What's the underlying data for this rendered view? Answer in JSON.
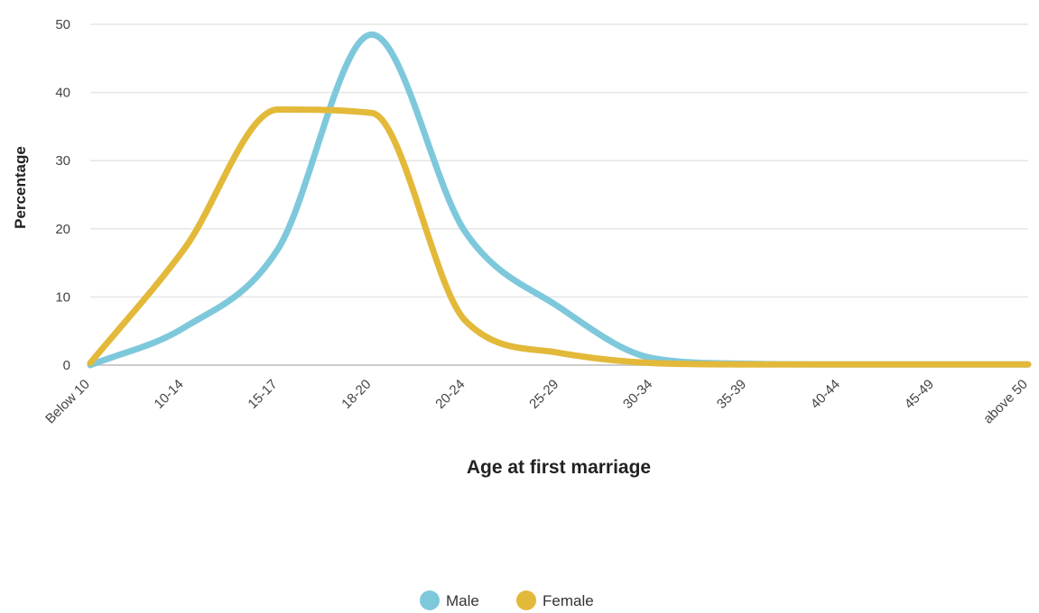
{
  "chart_data": {
    "type": "line",
    "title": "",
    "xlabel": "Age at first marriage",
    "ylabel": "Percentage",
    "categories": [
      "Below 10",
      "10-14",
      "15-17",
      "18-20",
      "20-24",
      "25-29",
      "30-34",
      "35-39",
      "40-44",
      "45-49",
      "above 50"
    ],
    "ylim": [
      0,
      50
    ],
    "yticks": [
      0,
      10,
      20,
      30,
      40,
      50
    ],
    "grid": true,
    "legend": "bottom-center",
    "series": [
      {
        "name": "Male",
        "color": "#7ec8dc",
        "values": [
          0,
          5.5,
          17,
          48.5,
          19.5,
          8.5,
          1,
          0.2,
          0.1,
          0.1,
          0.1
        ]
      },
      {
        "name": "Female",
        "color": "#e3b93a",
        "values": [
          0.3,
          17,
          37.5,
          37,
          6.5,
          1.8,
          0.3,
          0.1,
          0.1,
          0.1,
          0.1
        ]
      }
    ]
  }
}
